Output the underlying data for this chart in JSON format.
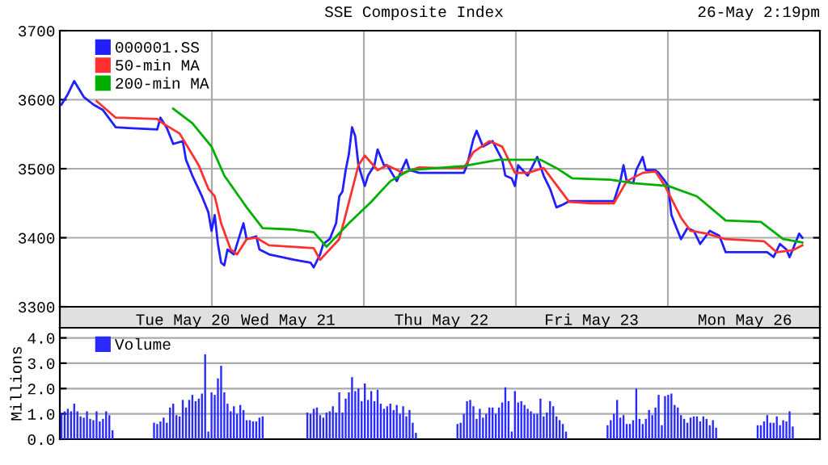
{
  "chart_data": [
    {
      "type": "line",
      "title": "SSE Composite Index",
      "annotations": [
        "26-May 2:19pm"
      ],
      "categories": [
        null,
        null,
        null,
        null,
        null,
        null,
        null,
        null,
        null,
        null,
        null,
        null,
        null,
        null,
        null,
        null,
        null,
        null,
        null,
        null,
        null,
        null,
        null,
        null,
        null,
        null,
        null,
        null,
        null,
        null,
        null,
        null,
        null,
        null,
        null,
        null,
        null,
        null,
        "Tue May 20",
        null,
        null,
        null,
        null,
        null,
        null,
        null,
        null,
        null,
        null,
        null,
        null,
        null,
        null,
        null,
        null,
        null,
        null,
        null,
        null,
        null,
        null,
        null,
        null,
        null,
        null,
        null,
        null,
        null,
        null,
        null,
        null,
        "Wed May 21",
        null,
        null,
        null,
        null,
        null,
        null,
        null,
        null,
        null,
        null,
        null,
        null,
        null,
        null,
        null,
        null,
        null,
        null,
        null,
        null,
        null,
        null,
        null,
        null,
        null,
        null,
        null,
        null,
        null,
        null,
        null,
        null,
        null,
        null,
        null,
        null,
        null,
        null,
        null,
        null,
        null,
        null,
        null,
        null,
        null,
        null,
        null,
        "Thu May 22",
        null,
        null,
        null,
        null,
        null,
        null,
        null,
        null,
        null,
        null,
        null,
        null,
        null,
        null,
        null,
        null,
        null,
        null,
        null,
        null,
        null,
        null,
        null,
        null,
        null,
        null,
        null,
        null,
        null,
        null,
        null,
        null,
        null,
        null,
        null,
        null,
        null,
        null,
        null,
        null,
        null,
        null,
        null,
        null,
        null,
        null,
        "Fri May 23",
        null,
        null,
        null,
        null,
        null,
        null,
        null,
        null,
        null,
        null,
        null,
        null,
        null,
        null,
        null,
        null,
        null,
        null,
        null,
        null,
        null,
        null,
        null,
        null,
        null,
        null,
        null,
        null,
        null,
        null,
        null,
        null,
        null,
        null,
        null,
        null,
        null,
        null,
        null,
        null,
        null,
        null,
        null,
        null,
        null,
        null,
        null,
        "Mon May 26",
        null,
        null,
        null,
        null,
        null,
        null,
        null,
        null,
        null,
        null,
        null,
        null,
        null,
        null,
        null,
        null,
        null,
        null,
        null,
        null,
        null,
        null,
        null
      ],
      "ylim": [
        3300,
        3700
      ],
      "yticks": [
        3300,
        3400,
        3500,
        3600,
        3700
      ],
      "grid": true,
      "legend": "top left",
      "series": [
        {
          "name": "000001.SS",
          "color": "#2020ff",
          "values": [
            3593,
            null,
            3608,
            null,
            3627,
            null,
            null,
            3604,
            null,
            null,
            3593,
            null,
            null,
            3585,
            null,
            null,
            null,
            3560,
            null,
            null,
            null,
            3559,
            null,
            null,
            null,
            null,
            null,
            null,
            null,
            null,
            3557,
            3574,
            null,
            3559,
            null,
            3536,
            null,
            null,
            3540,
            3513,
            null,
            3490,
            null,
            null,
            3460,
            null,
            3437,
            3410,
            3433,
            3391,
            3364,
            3360,
            3383,
            null,
            3376,
            null,
            3406,
            3421,
            3398,
            null,
            null,
            3402,
            3383,
            null,
            null,
            3376,
            null,
            null,
            null,
            null,
            null,
            null,
            null,
            3368,
            null,
            null,
            null,
            null,
            3364,
            3357,
            null,
            3376,
            3391,
            null,
            3398,
            null,
            3421,
            3460,
            3467,
            3498,
            3521,
            3560,
            3547,
            3505,
            null,
            3475,
            3490,
            null,
            3505,
            3528,
            null,
            3505,
            3505,
            null,
            null,
            3482,
            null,
            null,
            3513,
            3498,
            null,
            null,
            3494,
            3494,
            null,
            null,
            null,
            null,
            3494,
            null,
            null,
            null,
            null,
            null,
            null,
            null,
            3494,
            3505,
            null,
            3543,
            3555,
            null,
            3532,
            null,
            null,
            3540,
            null,
            null,
            3513,
            3490,
            null,
            3486,
            3475,
            3505,
            null,
            null,
            3490,
            null,
            null,
            3517,
            null,
            3490,
            null,
            3471,
            null,
            3444,
            null,
            3448,
            null,
            3453,
            null,
            null,
            null,
            null,
            null,
            null,
            null,
            null,
            null,
            null,
            null,
            null,
            null,
            3453,
            null,
            3482,
            3505,
            3482,
            null,
            3479,
            3498,
            null,
            3517,
            3498,
            null,
            null,
            3498,
            3494,
            null,
            3482,
            3475,
            3433,
            3421,
            null,
            3398,
            null,
            3414,
            null,
            3410,
            null,
            3391,
            null,
            null,
            3410,
            null,
            null,
            3403,
            null,
            3379,
            null,
            null,
            null,
            null,
            null,
            null,
            null,
            null,
            null,
            null,
            null,
            null,
            3379,
            null,
            3372,
            null,
            3391,
            null,
            3383,
            3372,
            3383,
            null,
            3406,
            3400,
            null,
            null,
            null,
            null,
            null
          ]
        },
        {
          "name": "50-min MA",
          "color": "#ff3030",
          "values": [
            null,
            null,
            null,
            null,
            null,
            null,
            null,
            null,
            null,
            null,
            null,
            3598,
            null,
            null,
            null,
            null,
            null,
            3574,
            null,
            null,
            null,
            null,
            null,
            null,
            null,
            null,
            null,
            null,
            null,
            null,
            3572,
            null,
            3565,
            null,
            null,
            null,
            null,
            3551,
            null,
            null,
            3528,
            null,
            null,
            3505,
            null,
            null,
            3471,
            null,
            3460,
            null,
            3421,
            null,
            null,
            3383,
            null,
            3376,
            null,
            null,
            3398,
            null,
            null,
            3400,
            null,
            null,
            null,
            3389,
            null,
            null,
            null,
            null,
            null,
            null,
            null,
            null,
            null,
            null,
            null,
            null,
            null,
            3385,
            null,
            3368,
            null,
            null,
            3383,
            null,
            null,
            3398,
            null,
            3433,
            null,
            null,
            null,
            3505,
            null,
            3519,
            null,
            null,
            null,
            3498,
            null,
            null,
            3505,
            null,
            null,
            null,
            null,
            3494,
            null,
            null,
            null,
            null,
            3502,
            null,
            null,
            null,
            null,
            null,
            3501,
            null,
            null,
            null,
            null,
            null,
            null,
            null,
            3501,
            null,
            null,
            3524,
            null,
            null,
            null,
            null,
            3540,
            null,
            null,
            null,
            3532,
            null,
            null,
            null,
            3494,
            null,
            null,
            null,
            3494,
            null,
            null,
            null,
            null,
            3501,
            null,
            null,
            null,
            null,
            null,
            null,
            null,
            3452,
            null,
            null,
            null,
            null,
            null,
            null,
            3450,
            null,
            null,
            null,
            null,
            null,
            null,
            3450,
            null,
            null,
            null,
            3482,
            null,
            null,
            null,
            null,
            3494,
            null,
            null,
            null,
            3496,
            null,
            null,
            3475,
            null,
            null,
            null,
            null,
            3429,
            null,
            null,
            3410,
            null,
            null,
            null,
            null,
            3406,
            null,
            null,
            null,
            null,
            null,
            3398,
            null,
            null,
            null,
            null,
            null,
            null,
            null,
            null,
            null,
            null,
            null,
            3395,
            null,
            null,
            null,
            3379,
            null,
            null,
            null,
            null,
            3382,
            null,
            null,
            3389,
            null,
            null,
            null,
            null,
            null
          ]
        },
        {
          "name": "200-min MA",
          "color": "#00b000",
          "values": [
            null,
            null,
            null,
            null,
            null,
            null,
            null,
            null,
            null,
            null,
            null,
            null,
            null,
            null,
            null,
            null,
            null,
            null,
            null,
            null,
            null,
            null,
            null,
            null,
            null,
            null,
            null,
            null,
            null,
            null,
            null,
            null,
            null,
            null,
            null,
            3587,
            null,
            null,
            null,
            null,
            null,
            3566,
            null,
            null,
            null,
            null,
            null,
            3532,
            null,
            null,
            null,
            3490,
            null,
            null,
            null,
            null,
            null,
            null,
            3444,
            null,
            null,
            null,
            null,
            3414,
            null,
            null,
            null,
            null,
            null,
            null,
            null,
            null,
            3412,
            null,
            null,
            null,
            null,
            null,
            null,
            3408,
            null,
            null,
            null,
            3387,
            null,
            null,
            null,
            null,
            null,
            null,
            3421,
            null,
            null,
            null,
            null,
            null,
            null,
            3452,
            null,
            null,
            null,
            null,
            null,
            3482,
            null,
            null,
            null,
            null,
            null,
            3498,
            null,
            null,
            3499,
            null,
            null,
            null,
            null,
            null,
            3501,
            null,
            null,
            null,
            null,
            null,
            null,
            null,
            3504,
            null,
            null,
            null,
            null,
            null,
            null,
            null,
            null,
            null,
            null,
            3513,
            null,
            null,
            null,
            null,
            null,
            null,
            null,
            null,
            null,
            null,
            null,
            null,
            3513,
            null,
            null,
            null,
            null,
            3501,
            null,
            null,
            null,
            null,
            3486,
            null,
            null,
            null,
            null,
            null,
            null,
            null,
            null,
            null,
            null,
            null,
            3484,
            null,
            null,
            null,
            null,
            null,
            null,
            3479,
            null,
            null,
            null,
            null,
            null,
            null,
            null,
            null,
            null,
            null,
            3475,
            null,
            null,
            null,
            null,
            null,
            null,
            null,
            null,
            3460,
            null,
            null,
            null,
            null,
            null,
            null,
            null,
            null,
            3425,
            null,
            null,
            null,
            null,
            null,
            null,
            null,
            null,
            null,
            null,
            3423,
            null,
            null,
            null,
            null,
            null,
            null,
            3398,
            null,
            null,
            null,
            null,
            null,
            3393,
            null,
            null,
            null,
            null,
            null
          ]
        }
      ]
    },
    {
      "type": "bar",
      "ylabel": "Millions",
      "categories": [
        null,
        null,
        null,
        null,
        null,
        null,
        null,
        null,
        null,
        null,
        null,
        null,
        null,
        null,
        null,
        null,
        null,
        null,
        null,
        null,
        null,
        null,
        null,
        null,
        null,
        null,
        null,
        null,
        null,
        null,
        null,
        null,
        null,
        null,
        null,
        null,
        null,
        null,
        null,
        null,
        null,
        null,
        null,
        null,
        null,
        null,
        null,
        null,
        null,
        null,
        null,
        null,
        null,
        null,
        null,
        null,
        null,
        null,
        null,
        null,
        null,
        null,
        null,
        null,
        null,
        null,
        null,
        null,
        null,
        null,
        null,
        null,
        null,
        null,
        null,
        null,
        null,
        null,
        null,
        null,
        null,
        null,
        null,
        null,
        null,
        null,
        null,
        null,
        null,
        null,
        null,
        null,
        null,
        null,
        null,
        null,
        null,
        null,
        null,
        null,
        null,
        null,
        null,
        null,
        null,
        null,
        null,
        null,
        null,
        null,
        null,
        null,
        null,
        null,
        null,
        null,
        null,
        null,
        null,
        null,
        null,
        null,
        null,
        null,
        null,
        null,
        null,
        null,
        null,
        null,
        null,
        null,
        null,
        null,
        null,
        null,
        null,
        null,
        null,
        null,
        null,
        null,
        null,
        null,
        null,
        null,
        null,
        null,
        null,
        null,
        null,
        null,
        null,
        null,
        null,
        null,
        null,
        null,
        null,
        null,
        null,
        null,
        null,
        null,
        null,
        null,
        null,
        null,
        null,
        null,
        null,
        null,
        null,
        null,
        null,
        null,
        null,
        null,
        null,
        null,
        null,
        null,
        null,
        null,
        null,
        null,
        null,
        null,
        null,
        null,
        null,
        null,
        null,
        null,
        null,
        null,
        null,
        null,
        null,
        null,
        null,
        null,
        null,
        null,
        null,
        null,
        null,
        null,
        null,
        null,
        null,
        null,
        null,
        null,
        null,
        null,
        null,
        null,
        null,
        null,
        null,
        null,
        null,
        null,
        null,
        null,
        null,
        null,
        null,
        null,
        null,
        null,
        null,
        null,
        null,
        null,
        null,
        null
      ],
      "ylim": [
        0,
        4.4
      ],
      "yticks": [
        {
          "value": 0,
          "label": "0.0"
        },
        {
          "value": 1,
          "label": "1.0"
        },
        {
          "value": 2,
          "label": "2.0"
        },
        {
          "value": 3,
          "label": "3.0"
        },
        {
          "value": 4,
          "label": "4.0"
        }
      ],
      "grid": true,
      "legend": "top left",
      "series": [
        {
          "name": "Volume",
          "color": "#2a2aff",
          "values": [
            1.0,
            1.1,
            1.2,
            1.1,
            1.4,
            1.1,
            0.9,
            0.85,
            1.1,
            0.8,
            0.75,
            1.1,
            0.7,
            0.8,
            1.1,
            0.95,
            0.35,
            null,
            null,
            null,
            null,
            null,
            null,
            null,
            null,
            null,
            null,
            null,
            null,
            0.65,
            0.6,
            0.7,
            0.85,
            0.65,
            1.25,
            1.4,
            0.95,
            0.9,
            1.55,
            1.25,
            1.55,
            1.75,
            1.5,
            1.6,
            1.8,
            3.35,
            0.3,
            1.85,
            1.75,
            2.4,
            2.9,
            1.85,
            1.4,
            1.1,
            1.3,
            1.0,
            1.35,
            1.15,
            0.75,
            0.75,
            0.7,
            0.7,
            0.85,
            0.9,
            null,
            null,
            null,
            null,
            null,
            null,
            null,
            null,
            null,
            null,
            null,
            null,
            null,
            1.05,
            1.0,
            1.2,
            1.25,
            0.95,
            0.85,
            1.05,
            1.1,
            1.3,
            1.05,
            1.85,
            1.05,
            1.6,
            1.85,
            2.45,
            1.9,
            2.0,
            1.5,
            2.2,
            1.55,
            1.9,
            1.5,
            1.95,
            1.4,
            1.2,
            1.3,
            1.4,
            1.15,
            1.35,
            1.0,
            1.3,
            0.9,
            1.15,
            0.65,
            0.25,
            null,
            null,
            null,
            null,
            null,
            null,
            null,
            null,
            null,
            null,
            null,
            null,
            0.6,
            0.65,
            1.0,
            1.5,
            1.55,
            1.3,
            0.8,
            1.2,
            0.85,
            1.0,
            1.25,
            1.25,
            1.0,
            1.25,
            1.45,
            2.05,
            1.5,
            0.3,
            1.9,
            1.45,
            1.5,
            1.35,
            1.2,
            1.1,
            1.0,
            1.0,
            1.6,
            0.9,
            1.05,
            1.5,
            1.3,
            0.9,
            0.75,
            0.6,
            0.3,
            null,
            null,
            null,
            null,
            null,
            null,
            null,
            null,
            null,
            null,
            null,
            null,
            0.55,
            0.75,
            1.0,
            1.55,
            0.85,
            0.95,
            0.6,
            0.6,
            0.75,
            2.0,
            0.8,
            0.6,
            0.8,
            1.15,
            0.95,
            1.25,
            1.75,
            0.55,
            1.7,
            1.75,
            1.8,
            1.35,
            1.25,
            0.95,
            0.8,
            0.65,
            0.85,
            0.9,
            0.9,
            0.7,
            0.9,
            0.8,
            0.55,
            0.75,
            0.45,
            null,
            null,
            null,
            null,
            null,
            null,
            null,
            null,
            null,
            null,
            null,
            null,
            0.55,
            0.55,
            0.7,
            0.95,
            0.65,
            0.65,
            0.9,
            0.55,
            0.75,
            0.7,
            1.1,
            0.5,
            null,
            null,
            null,
            null,
            null,
            null,
            null,
            null
          ]
        }
      ]
    }
  ]
}
